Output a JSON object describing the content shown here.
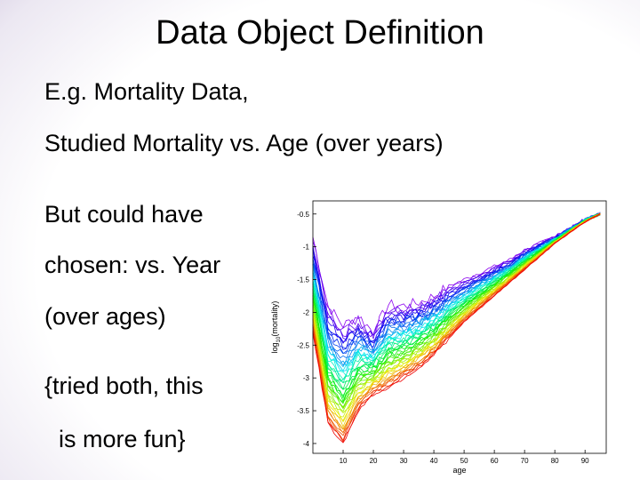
{
  "slide": {
    "title": "Data Object Definition",
    "lines": [
      "E.g. Mortality Data,",
      "Studied Mortality vs. Age (over years)",
      "But could have",
      "chosen: vs. Year",
      "(over ages)",
      "{tried both, this",
      "is more fun}"
    ]
  },
  "chart_data": {
    "type": "line",
    "xlabel": "age",
    "ylabel_main": "log",
    "ylabel_sub": "10",
    "ylabel_rest": "(mortality)",
    "xlim": [
      0,
      97
    ],
    "ylim": [
      -4.15,
      -0.3
    ],
    "x_ticks": [
      10,
      20,
      30,
      40,
      50,
      60,
      70,
      80,
      90
    ],
    "y_ticks": [
      -0.5,
      -1,
      -1.5,
      -2,
      -2.5,
      -3,
      -3.5,
      -4
    ],
    "x_tick_labels": [
      "10",
      "20",
      "30",
      "40",
      "50",
      "60",
      "70",
      "80",
      "90"
    ],
    "y_tick_labels": [
      "-0.5",
      "-1",
      "-1.5",
      "-2",
      "-2.5",
      "-3",
      "-3.5",
      "-4"
    ],
    "series_count": 45,
    "color_scale": "hue from violet (earliest years) to red (latest years)",
    "grid": false,
    "legend": "none",
    "earliest_curve": {
      "x": [
        0,
        5,
        10,
        15,
        20,
        25,
        30,
        35,
        40,
        45,
        50,
        55,
        60,
        65,
        70,
        75,
        80,
        85,
        90,
        95
      ],
      "y": [
        -0.85,
        -1.9,
        -2.2,
        -2.05,
        -2.3,
        -1.88,
        -1.9,
        -1.85,
        -1.75,
        -1.6,
        -1.5,
        -1.4,
        -1.3,
        -1.2,
        -1.05,
        -0.95,
        -0.85,
        -0.72,
        -0.58,
        -0.5
      ]
    },
    "latest_curve": {
      "x": [
        0,
        5,
        10,
        15,
        20,
        25,
        30,
        35,
        40,
        45,
        50,
        55,
        60,
        65,
        70,
        75,
        80,
        85,
        90,
        95
      ],
      "y": [
        -2.3,
        -3.7,
        -4.0,
        -3.5,
        -3.25,
        -3.15,
        -3.0,
        -2.85,
        -2.65,
        -2.4,
        -2.15,
        -1.95,
        -1.75,
        -1.55,
        -1.35,
        -1.15,
        -0.95,
        -0.78,
        -0.62,
        -0.5
      ]
    }
  }
}
